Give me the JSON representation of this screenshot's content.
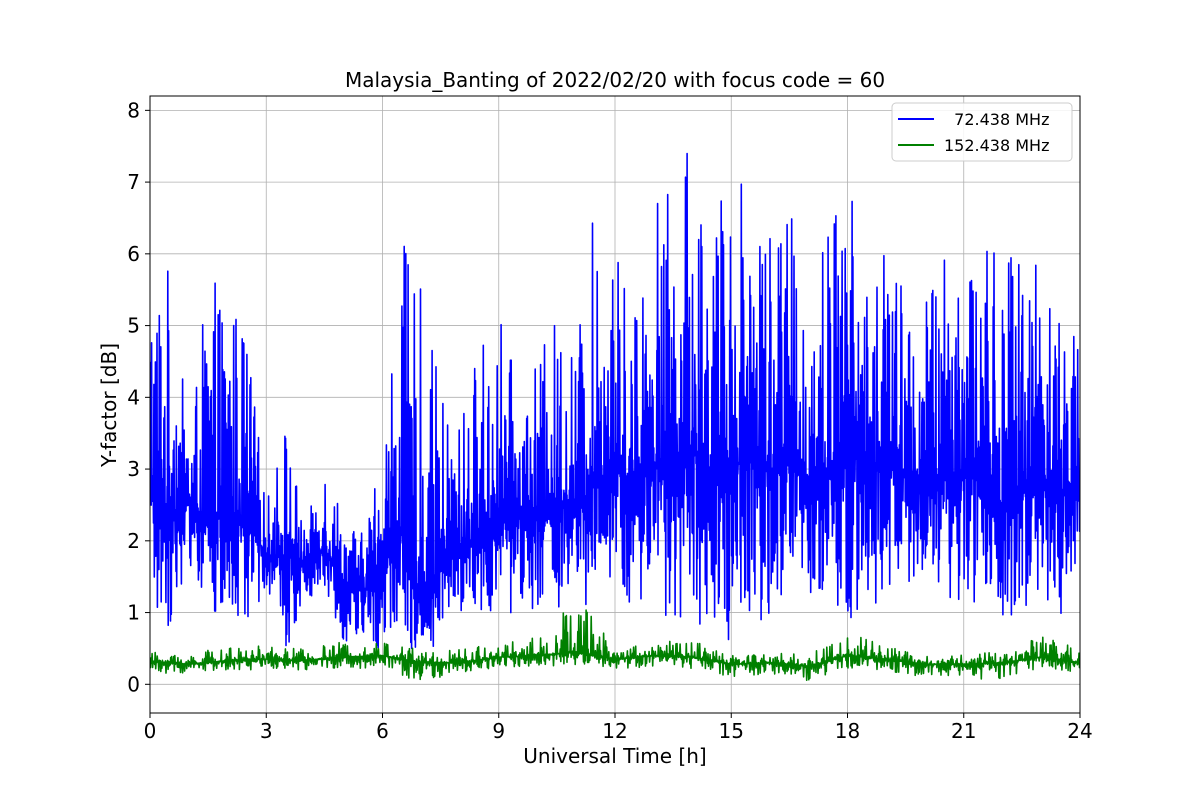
{
  "chart_data": {
    "type": "line",
    "title": "Malaysia_Banting of 2022/02/20 with focus code = 60",
    "xlabel": "Universal Time [h]",
    "ylabel": "Y-factor [dB]",
    "xlim": [
      0,
      24
    ],
    "ylim": [
      -0.4,
      8.2
    ],
    "xticks": [
      0,
      3,
      6,
      9,
      12,
      15,
      18,
      21,
      24
    ],
    "yticks": [
      0,
      1,
      2,
      3,
      4,
      5,
      6,
      7,
      8
    ],
    "grid": true,
    "legend_position": "top-right",
    "series": [
      {
        "name": "  72.438 MHz",
        "color": "#0000ff",
        "x": [
          0,
          0.5,
          1,
          1.5,
          2,
          2.5,
          3,
          3.5,
          4,
          4.5,
          5,
          5.5,
          6,
          6.5,
          7,
          7.5,
          8,
          8.5,
          9,
          9.5,
          10,
          10.5,
          11,
          11.5,
          12,
          12.5,
          13,
          13.5,
          14,
          14.5,
          15,
          15.5,
          16,
          16.5,
          17,
          17.5,
          18,
          18.5,
          19,
          19.5,
          20,
          20.5,
          21,
          21.5,
          22,
          22.5,
          23,
          23.5,
          24
        ],
        "center": [
          2.8,
          2.4,
          2.5,
          2.3,
          2.4,
          2.3,
          1.8,
          1.8,
          1.7,
          1.9,
          1.4,
          1.3,
          1.6,
          2.2,
          1.2,
          1.6,
          1.9,
          2.1,
          2.3,
          2.3,
          2.4,
          2.5,
          2.4,
          2.8,
          3.0,
          2.8,
          3.0,
          3.1,
          3.3,
          2.9,
          3.0,
          3.2,
          3.0,
          3.1,
          2.8,
          3.0,
          3.3,
          3.0,
          3.1,
          2.9,
          2.6,
          2.9,
          3.0,
          2.9,
          2.5,
          2.8,
          2.9,
          2.7,
          2.7
        ],
        "peak": [
          6.0,
          5.9,
          3.5,
          5.6,
          5.6,
          5.0,
          2.5,
          3.8,
          2.1,
          3.3,
          2.4,
          2.1,
          3.5,
          6.2,
          5.5,
          4.1,
          3.7,
          4.8,
          5.3,
          4.1,
          4.5,
          5.2,
          4.8,
          6.8,
          6.1,
          5.4,
          7.1,
          6.8,
          7.8,
          6.5,
          7.3,
          7.5,
          6.9,
          6.7,
          5.5,
          6.6,
          7.3,
          5.7,
          6.2,
          5.5,
          5.3,
          6.5,
          6.2,
          6.5,
          6.2,
          6.0,
          6.6,
          5.3,
          4.7
        ],
        "trough": [
          0.9,
          0.8,
          1.7,
          1.0,
          0.6,
          0.7,
          1.4,
          0.4,
          1.2,
          1.3,
          0.6,
          0.6,
          0.4,
          0.8,
          0.2,
          0.7,
          1.0,
          1.0,
          1.0,
          0.9,
          1.1,
          1.0,
          0.8,
          1.1,
          1.2,
          0.9,
          1.0,
          0.8,
          0.9,
          0.7,
          0.6,
          0.9,
          0.9,
          1.0,
          1.0,
          1.0,
          0.8,
          1.1,
          1.0,
          1.2,
          1.4,
          1.0,
          1.2,
          0.9,
          0.7,
          1.1,
          1.0,
          0.9,
          1.2
        ]
      },
      {
        "name": "152.438 MHz",
        "color": "#008000",
        "x": [
          0,
          1,
          2,
          3,
          4,
          5,
          6,
          7,
          8,
          9,
          10,
          11,
          12,
          13,
          14,
          15,
          16,
          17,
          18,
          19,
          20,
          21,
          22,
          23,
          24
        ],
        "center": [
          0.32,
          0.28,
          0.33,
          0.35,
          0.33,
          0.38,
          0.4,
          0.3,
          0.3,
          0.38,
          0.4,
          0.45,
          0.35,
          0.4,
          0.38,
          0.28,
          0.3,
          0.25,
          0.4,
          0.35,
          0.28,
          0.28,
          0.3,
          0.38,
          0.3
        ],
        "peak": [
          0.45,
          0.45,
          0.5,
          0.55,
          0.5,
          0.6,
          0.6,
          0.55,
          0.5,
          0.6,
          0.65,
          1.3,
          0.55,
          0.6,
          0.6,
          0.45,
          0.45,
          0.45,
          0.75,
          0.55,
          0.4,
          0.45,
          0.45,
          0.7,
          0.5
        ],
        "trough": [
          0.18,
          0.12,
          0.2,
          0.2,
          0.2,
          0.22,
          0.22,
          0.02,
          0.15,
          0.22,
          0.25,
          0.25,
          0.2,
          0.25,
          0.2,
          0.08,
          0.15,
          0.05,
          0.22,
          0.18,
          0.1,
          0.12,
          0.02,
          0.2,
          0.15
        ]
      }
    ]
  }
}
